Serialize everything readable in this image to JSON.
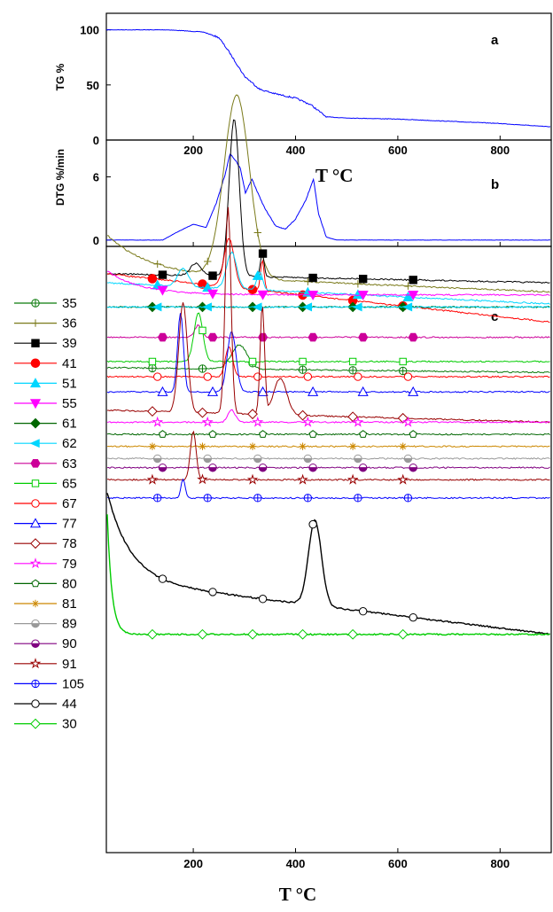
{
  "chart_data": [
    {
      "panel": "a",
      "type": "line",
      "panel_letter": "a",
      "ylabel": "TG %",
      "x_ticks": [
        200,
        400,
        600,
        800
      ],
      "y_ticks": [
        0,
        50,
        100
      ],
      "xlim": [
        30,
        900
      ],
      "ylim": [
        0,
        115
      ],
      "grid": false,
      "series": [
        {
          "color": "#0000ff",
          "x": [
            30,
            150,
            220,
            250,
            270,
            300,
            330,
            360,
            400,
            430,
            460,
            500,
            600,
            700,
            800,
            900
          ],
          "y": [
            100,
            100,
            98,
            93,
            80,
            58,
            46,
            42,
            38,
            32,
            21,
            20,
            19,
            17,
            15,
            12
          ]
        }
      ]
    },
    {
      "panel": "b",
      "type": "line",
      "panel_letter": "b",
      "ylabel": "DTG %/min",
      "xlabel": "T  °C",
      "x_ticks": [
        200,
        400,
        600,
        800
      ],
      "y_ticks": [
        0,
        6
      ],
      "xlim": [
        30,
        900
      ],
      "ylim": [
        -0.6,
        9.5
      ],
      "grid": false,
      "series": [
        {
          "color": "#0000ff",
          "x": [
            30,
            140,
            170,
            200,
            225,
            245,
            262,
            272,
            282,
            292,
            302,
            315,
            325,
            340,
            360,
            380,
            400,
            420,
            435,
            445,
            460,
            480,
            550,
            700,
            900
          ],
          "y": [
            0,
            0,
            0.8,
            1.5,
            1.2,
            3.5,
            6.2,
            8.2,
            7.6,
            6.8,
            4.5,
            5.8,
            4.6,
            3.0,
            1.4,
            1.0,
            2.0,
            3.8,
            5.8,
            2.5,
            0.3,
            0,
            0,
            0,
            0
          ]
        }
      ]
    },
    {
      "panel": "c",
      "type": "line",
      "panel_letter": "c",
      "xlabel": "T  °C",
      "x_ticks": [
        200,
        400,
        600,
        800
      ],
      "xlim": [
        30,
        900
      ],
      "legend_position": "left",
      "curves": [
        {
          "name": "35",
          "color": "#0a7a0a",
          "marker": "circle-plus",
          "base": 0.8,
          "end": 0.792,
          "peaks": [
            [
              290,
              0.04,
              22
            ]
          ]
        },
        {
          "name": "36",
          "color": "#7a7a1a",
          "marker": "plus",
          "base": 0.955,
          "end": 0.925,
          "peaks": [
            [
              285,
              0.3,
              35
            ]
          ],
          "start": 1.02,
          "decay": 0.55
        },
        {
          "name": "39",
          "color": "#000000",
          "marker": "square",
          "base": 0.955,
          "end": 0.94,
          "peaks": [
            [
              205,
              0.02,
              15
            ],
            [
              280,
              0.26,
              14
            ],
            [
              335,
              0.04,
              5
            ]
          ]
        },
        {
          "name": "41",
          "color": "#ff0000",
          "marker": "dot",
          "base": 0.955,
          "end": 0.875,
          "peaks": [
            [
              270,
              0.08,
              14
            ],
            [
              335,
              0.05,
              5
            ]
          ]
        },
        {
          "name": "51",
          "color": "#00d6ff",
          "marker": "triangle-up",
          "base": 0.94,
          "end": 0.905,
          "peaks": [
            [
              180,
              0.03,
              15
            ],
            [
              275,
              0.06,
              14
            ],
            [
              330,
              0.03,
              8
            ]
          ]
        },
        {
          "name": "55",
          "color": "#ff00ff",
          "marker": "triangle-down",
          "base": 0.92,
          "end": 0.92,
          "peaks": [],
          "start": 0.96,
          "decay": 0.45
        },
        {
          "name": "61",
          "color": "#006600",
          "marker": "diamond",
          "base": 0.9,
          "end": 0.9,
          "peaks": []
        },
        {
          "name": "62",
          "color": "#00d6ff",
          "marker": "triangle-left",
          "base": 0.9,
          "end": 0.9,
          "peaks": []
        },
        {
          "name": "63",
          "color": "#cc0099",
          "marker": "hexagon",
          "base": 0.85,
          "end": 0.85,
          "peaks": [
            [
              210,
              0.02,
              10
            ]
          ]
        },
        {
          "name": "65",
          "color": "#00cc00",
          "marker": "square-open",
          "base": 0.81,
          "end": 0.81,
          "peaks": [
            [
              210,
              0.08,
              12
            ]
          ]
        },
        {
          "name": "67",
          "color": "#ff0000",
          "marker": "circle-open",
          "base": 0.785,
          "end": 0.785,
          "peaks": [
            [
              270,
              0.05,
              10
            ]
          ]
        },
        {
          "name": "77",
          "color": "#0000ff",
          "marker": "triangle-open",
          "base": 0.76,
          "end": 0.76,
          "peaks": [
            [
              175,
              0.13,
              8
            ],
            [
              275,
              0.1,
              12
            ]
          ]
        },
        {
          "name": "78",
          "color": "#990000",
          "marker": "diamond-open",
          "base": 0.73,
          "end": 0.71,
          "peaks": [
            [
              180,
              0.18,
              12
            ],
            [
              268,
              0.34,
              8
            ],
            [
              335,
              0.18,
              6
            ],
            [
              370,
              0.06,
              18
            ]
          ]
        },
        {
          "name": "79",
          "color": "#ff00ff",
          "marker": "star-open",
          "base": 0.71,
          "end": 0.71,
          "peaks": [
            [
              275,
              0.02,
              10
            ]
          ]
        },
        {
          "name": "80",
          "color": "#006600",
          "marker": "pentagon-open",
          "base": 0.69,
          "end": 0.69,
          "peaks": []
        },
        {
          "name": "81",
          "color": "#cc8800",
          "marker": "asterisk",
          "base": 0.67,
          "end": 0.67,
          "peaks": []
        },
        {
          "name": "89",
          "color": "#999999",
          "marker": "half-filled",
          "base": 0.65,
          "end": 0.65,
          "peaks": []
        },
        {
          "name": "90",
          "color": "#800080",
          "marker": "half-filled",
          "base": 0.635,
          "end": 0.635,
          "peaks": []
        },
        {
          "name": "91",
          "color": "#990000",
          "marker": "star-open",
          "base": 0.615,
          "end": 0.615,
          "peaks": [
            [
              200,
              0.08,
              8
            ]
          ]
        },
        {
          "name": "105",
          "color": "#0000ff",
          "marker": "circle-plus",
          "base": 0.585,
          "end": 0.585,
          "peaks": [
            [
              180,
              0.03,
              6
            ]
          ]
        },
        {
          "name": "44",
          "color": "#000000",
          "marker": "circle-open",
          "base": 0.45,
          "end": 0.36,
          "peaks": [
            [
              438,
              0.14,
              18
            ]
          ],
          "start": 0.6,
          "decay": 0.3
        },
        {
          "name": "30",
          "color": "#00cc00",
          "marker": "diamond-open",
          "base": 0.36,
          "end": 0.36,
          "peaks": [],
          "start": 0.6,
          "decay": 0.06
        }
      ]
    }
  ],
  "colors": {
    "axis": "#000000",
    "background": "#ffffff"
  }
}
